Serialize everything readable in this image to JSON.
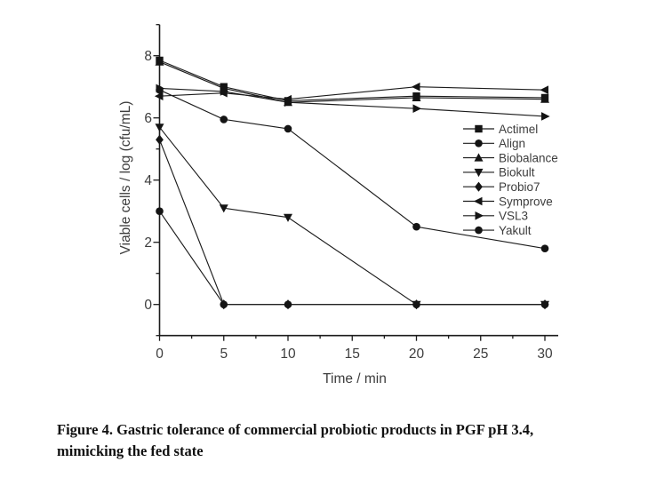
{
  "caption": {
    "line1": "Figure 4. Gastric tolerance of commercial probiotic products in PGF pH 3.4,",
    "line2": "mimicking the fed state"
  },
  "chart_data": {
    "type": "line",
    "title": "",
    "xlabel": "Time / min",
    "ylabel": "Viable cells / log (cfu/mL)",
    "x": [
      0,
      5,
      10,
      20,
      30
    ],
    "xlim": [
      0,
      31
    ],
    "ylim": [
      -1,
      9
    ],
    "x_major_ticks": [
      0,
      5,
      10,
      15,
      20,
      25,
      30
    ],
    "x_tick_labels": [
      "0",
      "5",
      "10",
      "15",
      "20",
      "25",
      "30"
    ],
    "x_minor_step": 2.5,
    "y_labeled_ticks": [
      0,
      2,
      4,
      6,
      8
    ],
    "y_tick_labels": [
      "0",
      "2",
      "4",
      "6",
      "8"
    ],
    "y_minor_step": 1,
    "grid": false,
    "legend_position": "right-middle",
    "line_color": "#1c1c1c",
    "marker_color": "#141414",
    "text_color": "#3d3d3d",
    "series": [
      {
        "name": "Actimel",
        "marker": "square",
        "values": [
          7.85,
          7.0,
          6.55,
          6.7,
          6.65
        ]
      },
      {
        "name": "Align",
        "marker": "circle",
        "values": [
          3.0,
          0.0,
          0.0,
          0.0,
          0.0
        ]
      },
      {
        "name": "Biobalance",
        "marker": "triangle-up",
        "values": [
          7.8,
          6.95,
          6.5,
          6.65,
          6.6
        ]
      },
      {
        "name": "Biokult",
        "marker": "triangle-down",
        "values": [
          5.7,
          3.1,
          2.8,
          0.0,
          0.0
        ]
      },
      {
        "name": "Probio7",
        "marker": "diamond",
        "values": [
          5.3,
          0.0,
          0.0,
          0.0,
          0.0
        ]
      },
      {
        "name": "Symprove",
        "marker": "triangle-left",
        "values": [
          6.7,
          6.8,
          6.6,
          7.0,
          6.9
        ]
      },
      {
        "name": "VSL3",
        "marker": "triangle-right",
        "values": [
          6.95,
          6.85,
          6.5,
          6.3,
          6.05
        ]
      },
      {
        "name": "Yakult",
        "marker": "circle",
        "values": [
          6.9,
          5.95,
          5.65,
          2.5,
          1.8
        ]
      }
    ]
  }
}
